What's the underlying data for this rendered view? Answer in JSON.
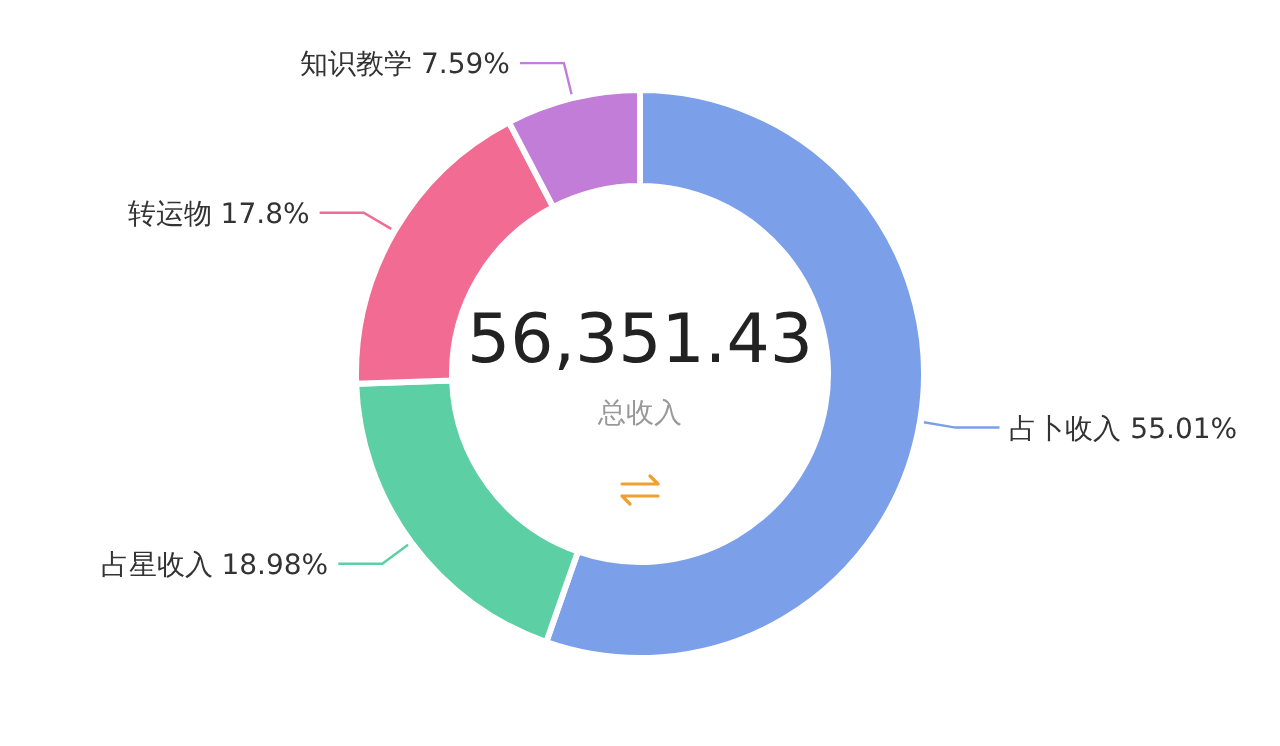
{
  "chart_data": {
    "type": "donut",
    "title": "56,351.43",
    "subtitle": "总收入",
    "categories": [
      "占卜收入",
      "占星收入",
      "转运物",
      "知识教学"
    ],
    "values": [
      55.01,
      18.98,
      17.8,
      7.59
    ],
    "value_labels": [
      "55.01%",
      "18.98%",
      "17.8%",
      "7.59%"
    ],
    "colors": [
      "#7b9fe8",
      "#5ccfa4",
      "#f26b93",
      "#c17dd8"
    ]
  }
}
